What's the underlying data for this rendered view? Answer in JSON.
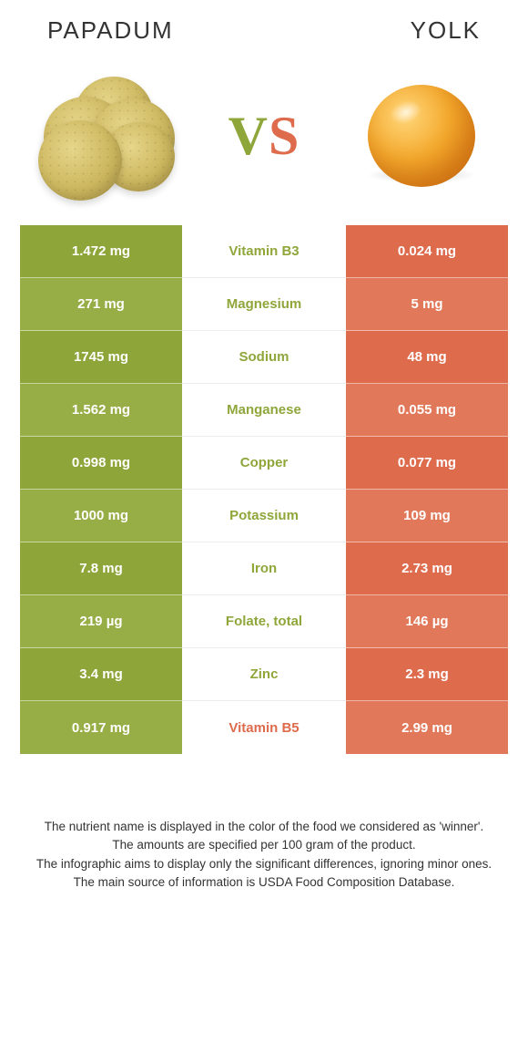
{
  "colors": {
    "green": "#8fa63a",
    "green_light": "#9fb34e",
    "orange": "#dd6b4c",
    "orange_light": "#e07a5d",
    "mid_bg": "#ffffff",
    "divider": "#ececec",
    "text_dark": "#333333",
    "text_white": "#ffffff"
  },
  "header": {
    "left_title": "Papadum",
    "right_title": "Yolk"
  },
  "vs": {
    "v": "V",
    "s": "S"
  },
  "rows": [
    {
      "left": "1.472 mg",
      "label": "Vitamin B3",
      "right": "0.024 mg",
      "winner": "left"
    },
    {
      "left": "271 mg",
      "label": "Magnesium",
      "right": "5 mg",
      "winner": "left"
    },
    {
      "left": "1745 mg",
      "label": "Sodium",
      "right": "48 mg",
      "winner": "left"
    },
    {
      "left": "1.562 mg",
      "label": "Manganese",
      "right": "0.055 mg",
      "winner": "left"
    },
    {
      "left": "0.998 mg",
      "label": "Copper",
      "right": "0.077 mg",
      "winner": "left"
    },
    {
      "left": "1000 mg",
      "label": "Potassium",
      "right": "109 mg",
      "winner": "left"
    },
    {
      "left": "7.8 mg",
      "label": "Iron",
      "right": "2.73 mg",
      "winner": "left"
    },
    {
      "left": "219 µg",
      "label": "Folate, total",
      "right": "146 µg",
      "winner": "left"
    },
    {
      "left": "3.4 mg",
      "label": "Zinc",
      "right": "2.3 mg",
      "winner": "left"
    },
    {
      "left": "0.917 mg",
      "label": "Vitamin B5",
      "right": "2.99 mg",
      "winner": "right"
    }
  ],
  "left_col_shades": [
    "#8ea539",
    "#97ad45",
    "#8ea539",
    "#97ad45",
    "#8ea539",
    "#97ad45",
    "#8ea539",
    "#97ad45",
    "#8ea539",
    "#97ad45"
  ],
  "right_col_shades": [
    "#dd6b4c",
    "#e17859",
    "#dd6b4c",
    "#e17859",
    "#dd6b4c",
    "#e17859",
    "#dd6b4c",
    "#e17859",
    "#dd6b4c",
    "#e17859"
  ],
  "footnote": {
    "l1": "The nutrient name is displayed in the color of the food we considered as 'winner'.",
    "l2": "The amounts are specified per 100 gram of the product.",
    "l3": "The infographic aims to display only the significant differences, ignoring minor ones.",
    "l4": "The main source of information is USDA Food Composition Database."
  }
}
